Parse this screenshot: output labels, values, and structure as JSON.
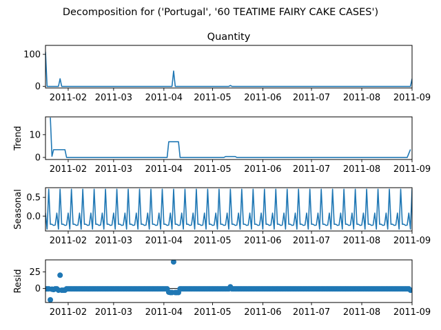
{
  "figure": {
    "suptitle": "Decomposition for ('Portugal', '60 TEATIME FAIRY CAKE CASES')"
  },
  "colors": {
    "series": "#1f77b4"
  },
  "chart_data": [
    {
      "type": "line",
      "title": "Quantity",
      "ylabel": "",
      "x_range": [
        "2011-01-18",
        "2011-09-01"
      ],
      "ylim": [
        -5,
        128
      ],
      "yticks": [
        0,
        100
      ],
      "xticks": [
        "2011-02",
        "2011-03",
        "2011-04",
        "2011-05",
        "2011-06",
        "2011-07",
        "2011-08",
        "2011-09"
      ],
      "series": [
        {
          "points": [
            [
              "2011-01-18",
              108
            ],
            [
              "2011-01-19",
              0
            ],
            [
              "2011-01-26",
              0
            ],
            [
              "2011-01-27",
              24
            ],
            [
              "2011-01-28",
              0
            ],
            [
              "2011-04-06",
              0
            ],
            [
              "2011-04-07",
              48
            ],
            [
              "2011-04-08",
              0
            ],
            [
              "2011-05-11",
              0
            ],
            [
              "2011-05-12",
              3
            ],
            [
              "2011-05-13",
              0
            ],
            [
              "2011-08-31",
              0
            ],
            [
              "2011-09-01",
              24
            ]
          ]
        }
      ]
    },
    {
      "type": "line",
      "title": "",
      "ylabel": "Trend",
      "x_range": [
        "2011-01-18",
        "2011-09-01"
      ],
      "ylim": [
        -0.9,
        17.8
      ],
      "yticks": [
        0,
        10
      ],
      "xticks": [
        "2011-02",
        "2011-03",
        "2011-04",
        "2011-05",
        "2011-06",
        "2011-07",
        "2011-08",
        "2011-09"
      ],
      "series": [
        {
          "points": [
            [
              "2011-01-21",
              17.5
            ],
            [
              "2011-01-22",
              0.5
            ],
            [
              "2011-01-23",
              3.4
            ],
            [
              "2011-01-30",
              3.4
            ],
            [
              "2011-01-31",
              0
            ],
            [
              "2011-04-03",
              0
            ],
            [
              "2011-04-04",
              6.9
            ],
            [
              "2011-04-10",
              6.9
            ],
            [
              "2011-04-11",
              0
            ],
            [
              "2011-05-08",
              0
            ],
            [
              "2011-05-09",
              0.4
            ],
            [
              "2011-05-15",
              0.4
            ],
            [
              "2011-05-16",
              0
            ],
            [
              "2011-08-29",
              0
            ],
            [
              "2011-08-31",
              3.5
            ]
          ]
        }
      ]
    },
    {
      "type": "line",
      "title": "",
      "ylabel": "Seasonal",
      "x_range": [
        "2011-01-18",
        "2011-09-01"
      ],
      "ylim": [
        -0.4,
        0.76
      ],
      "yticks": [
        0.5,
        0.0
      ],
      "ytick_labels": [
        "0.5",
        "0.0"
      ],
      "xticks": [
        "2011-02",
        "2011-03",
        "2011-04",
        "2011-05",
        "2011-06",
        "2011-07",
        "2011-08",
        "2011-09"
      ],
      "seasonal_cycle": {
        "start": "2011-01-18",
        "period_days": 7,
        "pattern": [
          0.08,
          -0.35,
          0.72,
          -0.22,
          -0.22,
          -0.25,
          -0.24
        ]
      }
    },
    {
      "type": "scatter",
      "title": "",
      "ylabel": "Resid",
      "x_range": [
        "2011-01-18",
        "2011-09-01"
      ],
      "ylim": [
        -21,
        43
      ],
      "yticks": [
        25,
        0
      ],
      "zero_line": true,
      "xticks": [
        "2011-02",
        "2011-03",
        "2011-04",
        "2011-05",
        "2011-06",
        "2011-07",
        "2011-08",
        "2011-09"
      ],
      "baseline_range": [
        "2011-01-18",
        "2011-08-31"
      ],
      "baseline_value": -0.5,
      "outliers": [
        [
          "2011-01-21",
          -17
        ],
        [
          "2011-01-22",
          -1
        ],
        [
          "2011-01-23",
          -1.5
        ],
        [
          "2011-01-26",
          -2.5
        ],
        [
          "2011-01-27",
          20
        ],
        [
          "2011-01-28",
          -2.5
        ],
        [
          "2011-01-29",
          -2.5
        ],
        [
          "2011-01-30",
          -2.5
        ],
        [
          "2011-04-04",
          -5.5
        ],
        [
          "2011-04-05",
          -6
        ],
        [
          "2011-04-06",
          -6
        ],
        [
          "2011-04-07",
          40
        ],
        [
          "2011-04-08",
          -6
        ],
        [
          "2011-04-09",
          -6
        ],
        [
          "2011-04-10",
          -6
        ],
        [
          "2011-05-12",
          2.5
        ],
        [
          "2011-08-31",
          -2.5
        ]
      ]
    }
  ]
}
